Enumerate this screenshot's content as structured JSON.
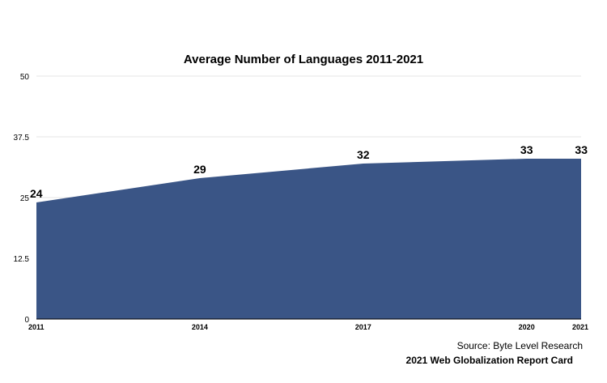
{
  "chart_data": {
    "type": "area",
    "title": "Average Number of Languages 2011-2021",
    "categories": [
      "2011",
      "2014",
      "2017",
      "2020",
      "2021"
    ],
    "values": [
      24,
      29,
      32,
      33,
      33
    ],
    "series": [
      {
        "values": [
          24,
          29,
          32,
          33,
          33
        ]
      }
    ],
    "ylim": [
      0,
      50
    ],
    "yticks": [
      "0",
      "12.5",
      "25",
      "37.5",
      "50"
    ],
    "xlabel": "",
    "ylabel": "",
    "grid": true,
    "area_color": "#3a5586"
  },
  "footer": {
    "source": "Source: Byte Level Research",
    "report": "2021 Web Globalization Report Card"
  }
}
